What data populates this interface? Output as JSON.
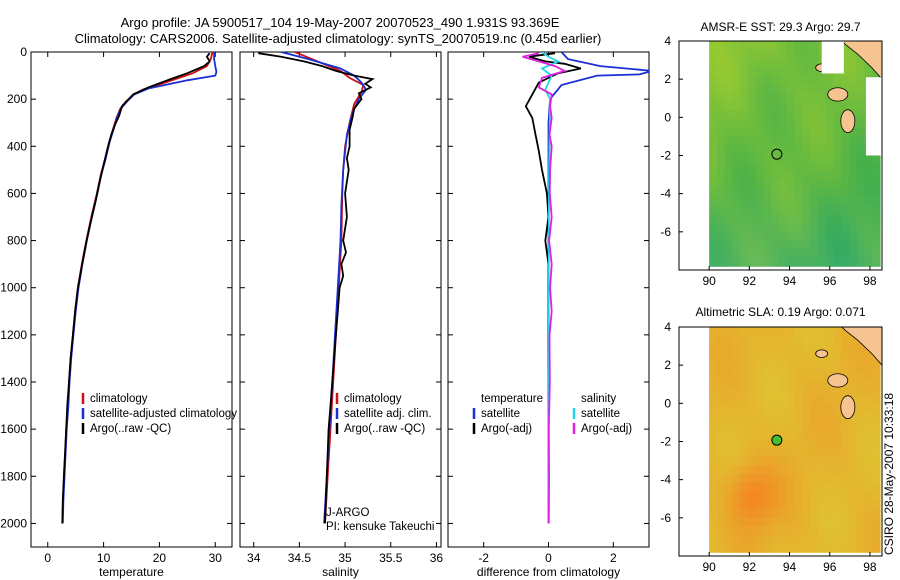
{
  "title": {
    "line1": "Argo profile: JA 5900517_104 19-May-2007 20070523_490 1.931S 93.369E",
    "line2": "Climatology: CARS2006. Satellite-adjusted climatology: synTS_20070519.nc (0.45d earlier)"
  },
  "side_label": "CSIRO 28-May-2007 10:33:18",
  "colors": {
    "red": "#d01010",
    "blue": "#1a2fd6",
    "black": "#000000",
    "cyan": "#25d4e8",
    "magenta": "#e020e0",
    "land": "#f5c490"
  },
  "chart_data": [
    {
      "id": "temperature",
      "type": "line",
      "xlabel": "temperature",
      "xlim": [
        -3,
        33
      ],
      "ylim": [
        0,
        2100
      ],
      "y_reversed": true,
      "x_ticks": [
        0,
        10,
        20,
        30
      ],
      "y_ticks": [
        0,
        200,
        400,
        600,
        800,
        1000,
        1200,
        1400,
        1600,
        1800,
        2000
      ],
      "legend": [
        "climatology",
        "satellite-adjusted climatology",
        "Argo(..raw -QC)"
      ],
      "series": [
        {
          "name": "climatology",
          "color": "red",
          "points": [
            [
              29.5,
              0
            ],
            [
              29.2,
              30
            ],
            [
              28.5,
              60
            ],
            [
              26,
              90
            ],
            [
              21,
              130
            ],
            [
              17,
              160
            ],
            [
              15.5,
              180
            ],
            [
              14,
              210
            ],
            [
              13,
              240
            ],
            [
              12.3,
              280
            ],
            [
              11.8,
              320
            ],
            [
              11,
              380
            ],
            [
              10.3,
              450
            ],
            [
              9.5,
              520
            ],
            [
              8.8,
              600
            ],
            [
              7.8,
              700
            ],
            [
              6.9,
              800
            ],
            [
              6.1,
              900
            ],
            [
              5.4,
              1000
            ],
            [
              4.9,
              1100
            ],
            [
              4.5,
              1200
            ],
            [
              4.1,
              1300
            ],
            [
              3.8,
              1400
            ],
            [
              3.6,
              1500
            ],
            [
              3.3,
              1600
            ],
            [
              3.1,
              1700
            ],
            [
              2.9,
              1800
            ],
            [
              2.75,
              1900
            ],
            [
              2.6,
              2000
            ]
          ]
        },
        {
          "name": "satellite-adjusted climatology",
          "color": "blue",
          "points": [
            [
              29.8,
              0
            ],
            [
              29.8,
              30
            ],
            [
              30,
              60
            ],
            [
              30.2,
              85
            ],
            [
              30,
              100
            ],
            [
              25,
              120
            ],
            [
              18,
              155
            ],
            [
              15.5,
              180
            ],
            [
              14.2,
              210
            ],
            [
              13.1,
              240
            ],
            [
              12.4,
              280
            ],
            [
              11.9,
              320
            ],
            [
              11.1,
              380
            ],
            [
              10.4,
              450
            ],
            [
              9.6,
              520
            ],
            [
              8.9,
              600
            ],
            [
              7.9,
              700
            ],
            [
              7,
              800
            ],
            [
              6.2,
              900
            ],
            [
              5.5,
              1000
            ],
            [
              5,
              1100
            ],
            [
              4.6,
              1200
            ],
            [
              4.2,
              1300
            ],
            [
              3.9,
              1400
            ],
            [
              3.7,
              1500
            ],
            [
              3.4,
              1600
            ],
            [
              3.2,
              1700
            ],
            [
              3,
              1800
            ],
            [
              2.8,
              1900
            ],
            [
              2.7,
              2000
            ]
          ]
        },
        {
          "name": "Argo(..raw -QC)",
          "color": "black",
          "points": [
            [
              29,
              5
            ],
            [
              28.5,
              20
            ],
            [
              29,
              40
            ],
            [
              28,
              60
            ],
            [
              25,
              90
            ],
            [
              22,
              115
            ],
            [
              18,
              150
            ],
            [
              15.3,
              180
            ],
            [
              14.5,
              200
            ],
            [
              13.3,
              230
            ],
            [
              12.8,
              270
            ],
            [
              12,
              310
            ],
            [
              11.4,
              350
            ],
            [
              10.6,
              420
            ],
            [
              9.9,
              490
            ],
            [
              9.2,
              560
            ],
            [
              8.5,
              640
            ],
            [
              7.6,
              730
            ],
            [
              6.8,
              820
            ],
            [
              6,
              920
            ],
            [
              5.4,
              1000
            ],
            [
              4.9,
              1100
            ],
            [
              4.5,
              1200
            ],
            [
              4.1,
              1300
            ],
            [
              3.8,
              1400
            ],
            [
              3.5,
              1500
            ],
            [
              3.3,
              1600
            ],
            [
              3.1,
              1700
            ],
            [
              2.9,
              1800
            ],
            [
              2.7,
              1900
            ],
            [
              2.6,
              2000
            ]
          ]
        }
      ]
    },
    {
      "id": "salinity",
      "type": "line",
      "xlabel": "salinity",
      "xlim": [
        33.85,
        36.05
      ],
      "ylim": [
        0,
        2100
      ],
      "y_reversed": true,
      "x_ticks": [
        34,
        34.5,
        35,
        35.5,
        36
      ],
      "legend": [
        "climatology",
        "satellite adj. clim.",
        "Argo(..raw -QC)"
      ],
      "annotation": [
        "J-ARGO",
        "PI: kensuke Takeuchi"
      ],
      "series": [
        {
          "name": "climatology",
          "color": "red",
          "points": [
            [
              34.45,
              0
            ],
            [
              34.7,
              40
            ],
            [
              34.95,
              80
            ],
            [
              35.05,
              110
            ],
            [
              35.2,
              140
            ],
            [
              35.18,
              170
            ],
            [
              35.1,
              220
            ],
            [
              35.05,
              300
            ],
            [
              35,
              400
            ],
            [
              34.98,
              500
            ],
            [
              34.97,
              600
            ],
            [
              34.96,
              800
            ],
            [
              34.93,
              1000
            ],
            [
              34.9,
              1200
            ],
            [
              34.87,
              1400
            ],
            [
              34.84,
              1600
            ],
            [
              34.81,
              1800
            ],
            [
              34.78,
              2000
            ]
          ]
        },
        {
          "name": "satellite adj. clim.",
          "color": "blue",
          "points": [
            [
              34.3,
              0
            ],
            [
              34.6,
              30
            ],
            [
              34.95,
              70
            ],
            [
              35.1,
              100
            ],
            [
              35.18,
              130
            ],
            [
              35.23,
              160
            ],
            [
              35.15,
              200
            ],
            [
              35.08,
              260
            ],
            [
              35.02,
              350
            ],
            [
              34.98,
              500
            ],
            [
              34.96,
              650
            ],
            [
              34.95,
              800
            ],
            [
              34.92,
              1000
            ],
            [
              34.89,
              1200
            ],
            [
              34.86,
              1400
            ],
            [
              34.83,
              1600
            ],
            [
              34.8,
              1800
            ],
            [
              34.77,
              2000
            ]
          ]
        },
        {
          "name": "Argo(..raw -QC)",
          "color": "black",
          "points": [
            [
              34.05,
              5
            ],
            [
              34.3,
              20
            ],
            [
              34.55,
              40
            ],
            [
              34.75,
              60
            ],
            [
              34.9,
              80
            ],
            [
              35.1,
              100
            ],
            [
              35.3,
              115
            ],
            [
              35.22,
              135
            ],
            [
              35.28,
              150
            ],
            [
              35.15,
              175
            ],
            [
              35.18,
              200
            ],
            [
              35.1,
              240
            ],
            [
              35.08,
              280
            ],
            [
              35.05,
              330
            ],
            [
              35.05,
              400
            ],
            [
              35.02,
              450
            ],
            [
              35.04,
              500
            ],
            [
              35,
              600
            ],
            [
              35.02,
              700
            ],
            [
              34.98,
              800
            ],
            [
              35.01,
              850
            ],
            [
              34.96,
              900
            ],
            [
              34.98,
              950
            ],
            [
              34.94,
              1000
            ],
            [
              34.92,
              1100
            ],
            [
              34.9,
              1200
            ],
            [
              34.88,
              1300
            ],
            [
              34.86,
              1400
            ],
            [
              34.84,
              1500
            ],
            [
              34.82,
              1600
            ],
            [
              34.81,
              1700
            ],
            [
              34.8,
              1800
            ],
            [
              34.79,
              1900
            ],
            [
              34.78,
              2000
            ]
          ]
        }
      ]
    },
    {
      "id": "difference",
      "type": "line",
      "xlabel": "difference from climatology",
      "xlim": [
        -3.1,
        3.1
      ],
      "ylim": [
        0,
        2100
      ],
      "y_reversed": true,
      "x_ticks": [
        -2,
        0,
        2
      ],
      "legend_columns": [
        {
          "header": "temperature",
          "items": [
            "satellite",
            "Argo(-adj)"
          ]
        },
        {
          "header": "salinity",
          "items": [
            "satellite",
            "Argo(-adj)"
          ]
        }
      ],
      "series": [
        {
          "name": "temperature satellite",
          "color": "blue",
          "points": [
            [
              0.4,
              0
            ],
            [
              0.6,
              30
            ],
            [
              1.6,
              60
            ],
            [
              3.2,
              80
            ],
            [
              2.8,
              95
            ],
            [
              1.5,
              100
            ],
            [
              0.4,
              140
            ],
            [
              0.05,
              200
            ],
            [
              0,
              300
            ],
            [
              0,
              2000
            ]
          ]
        },
        {
          "name": "temperature Argo(-adj)",
          "color": "black",
          "points": [
            [
              0.2,
              5
            ],
            [
              -0.6,
              20
            ],
            [
              -0.1,
              40
            ],
            [
              0.5,
              50
            ],
            [
              1,
              70
            ],
            [
              0.3,
              90
            ],
            [
              -0.3,
              130
            ],
            [
              -0.5,
              180
            ],
            [
              -0.7,
              230
            ],
            [
              -0.5,
              280
            ],
            [
              -0.4,
              350
            ],
            [
              -0.3,
              420
            ],
            [
              -0.2,
              500
            ],
            [
              -0.05,
              600
            ],
            [
              0,
              700
            ],
            [
              -0.1,
              800
            ],
            [
              0,
              900
            ],
            [
              0,
              1000
            ],
            [
              0,
              1200
            ],
            [
              0,
              1400
            ],
            [
              0,
              2000
            ]
          ]
        },
        {
          "name": "salinity satellite",
          "color": "cyan",
          "points": [
            [
              -0.2,
              0
            ],
            [
              0,
              20
            ],
            [
              0.3,
              40
            ],
            [
              -0.2,
              70
            ],
            [
              0.1,
              100
            ],
            [
              0,
              130
            ],
            [
              -0.1,
              160
            ],
            [
              0.05,
              200
            ],
            [
              0.04,
              300
            ],
            [
              0.02,
              500
            ],
            [
              0.01,
              800
            ],
            [
              0.01,
              1200
            ],
            [
              0,
              1600
            ],
            [
              0,
              2000
            ]
          ]
        },
        {
          "name": "salinity Argo(-adj)",
          "color": "magenta",
          "points": [
            [
              -0.3,
              5
            ],
            [
              -0.8,
              20
            ],
            [
              -0.3,
              40
            ],
            [
              0.2,
              60
            ],
            [
              0.5,
              80
            ],
            [
              -0.2,
              110
            ],
            [
              -0.3,
              150
            ],
            [
              0.1,
              180
            ],
            [
              0.05,
              230
            ],
            [
              0.1,
              280
            ],
            [
              0.03,
              350
            ],
            [
              0.1,
              400
            ],
            [
              0.05,
              500
            ],
            [
              0.04,
              600
            ],
            [
              0.1,
              700
            ],
            [
              0.02,
              800
            ],
            [
              0.1,
              900
            ],
            [
              0.05,
              1000
            ],
            [
              0.1,
              1100
            ],
            [
              0.03,
              1200
            ],
            [
              0.04,
              1400
            ],
            [
              0.01,
              1600
            ],
            [
              0.02,
              1800
            ],
            [
              0.01,
              2000
            ]
          ]
        }
      ]
    },
    {
      "id": "sst_map",
      "type": "heatmap",
      "title": "AMSR-E SST: 29.3 Argo: 29.7",
      "x_ticks": [
        90,
        92,
        94,
        96,
        98
      ],
      "y_ticks": [
        4,
        2,
        0,
        -2,
        -4,
        -6
      ],
      "xlim": [
        88.5,
        98.6
      ],
      "ylim": [
        -8,
        4
      ],
      "data_lon": [
        90,
        98.5
      ],
      "data_lat": [
        -7.8,
        4
      ],
      "argo_position": [
        93.369,
        -1.931
      ],
      "argo_marker_filled": false
    },
    {
      "id": "sla_map",
      "type": "heatmap",
      "title": "Altimetric SLA: 0.19 Argo: 0.071",
      "x_ticks": [
        90,
        92,
        94,
        96,
        98
      ],
      "y_ticks": [
        4,
        2,
        0,
        -2,
        -4,
        -6
      ],
      "xlim": [
        88.5,
        98.6
      ],
      "ylim": [
        -8,
        4
      ],
      "data_lon": [
        90,
        98.5
      ],
      "data_lat": [
        -7.8,
        4
      ],
      "argo_position": [
        93.369,
        -1.931
      ],
      "argo_marker_filled": true
    }
  ]
}
